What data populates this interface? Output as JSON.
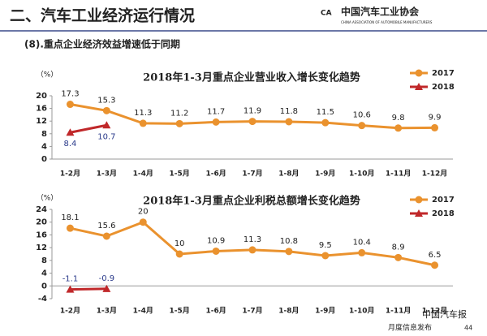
{
  "header": {
    "title": "二、汽车工业经济运行情况",
    "logo": "中国汽车工业协会",
    "logo_en": "CHINA ASSOCIATION OF AUTOMOBILE MANUFACTURERS"
  },
  "subtitle": "(8).重点企业经济效益增速低于同期",
  "footer": {
    "text": "月度信息发布",
    "page": "44",
    "watermark": "中国汽车报"
  },
  "chart_data": [
    {
      "type": "line",
      "title": "2018年1-3月重点企业营业收入增长变化趋势",
      "y_label": "（%）",
      "categories": [
        "1-2月",
        "1-3月",
        "1-4月",
        "1-5月",
        "1-6月",
        "1-7月",
        "1-8月",
        "1-9月",
        "1-10月",
        "1-11月",
        "1-12月"
      ],
      "ylim": [
        0,
        20
      ],
      "yticks": [
        0,
        4,
        8,
        12,
        16,
        20
      ],
      "legend": "upper right",
      "series": [
        {
          "name": "2017",
          "color": "#ea922e",
          "marker": "circle",
          "label_color": "#222222",
          "label_position": "above",
          "values": [
            17.3,
            15.3,
            11.3,
            11.2,
            11.7,
            11.9,
            11.8,
            11.5,
            10.6,
            9.8,
            9.9
          ]
        },
        {
          "name": "2018",
          "color": "#c0282a",
          "marker": "triangle",
          "label_color": "#2a3a8a",
          "label_position": "below",
          "values": [
            8.4,
            10.7,
            null,
            null,
            null,
            null,
            null,
            null,
            null,
            null,
            null
          ]
        }
      ]
    },
    {
      "type": "line",
      "title": "2018年1-3月重点企业利税总额增长变化趋势",
      "y_label": "（%）",
      "categories": [
        "1-2月",
        "1-3月",
        "1-4月",
        "1-5月",
        "1-6月",
        "1-7月",
        "1-8月",
        "1-9月",
        "1-10月",
        "1-11月",
        "1-12月"
      ],
      "ylim": [
        -4,
        24
      ],
      "yticks": [
        -4,
        0,
        4,
        8,
        12,
        16,
        20,
        24
      ],
      "legend": "upper right",
      "series": [
        {
          "name": "2017",
          "color": "#ea922e",
          "marker": "circle",
          "label_color": "#222222",
          "label_position": "above",
          "values": [
            18.1,
            15.6,
            20,
            10,
            10.9,
            11.3,
            10.8,
            9.5,
            10.4,
            8.9,
            6.5
          ]
        },
        {
          "name": "2018",
          "color": "#c0282a",
          "marker": "triangle",
          "label_color": "#2a3a8a",
          "label_position": "above",
          "values": [
            -1.1,
            -0.9,
            null,
            null,
            null,
            null,
            null,
            null,
            null,
            null,
            null
          ]
        }
      ]
    }
  ]
}
